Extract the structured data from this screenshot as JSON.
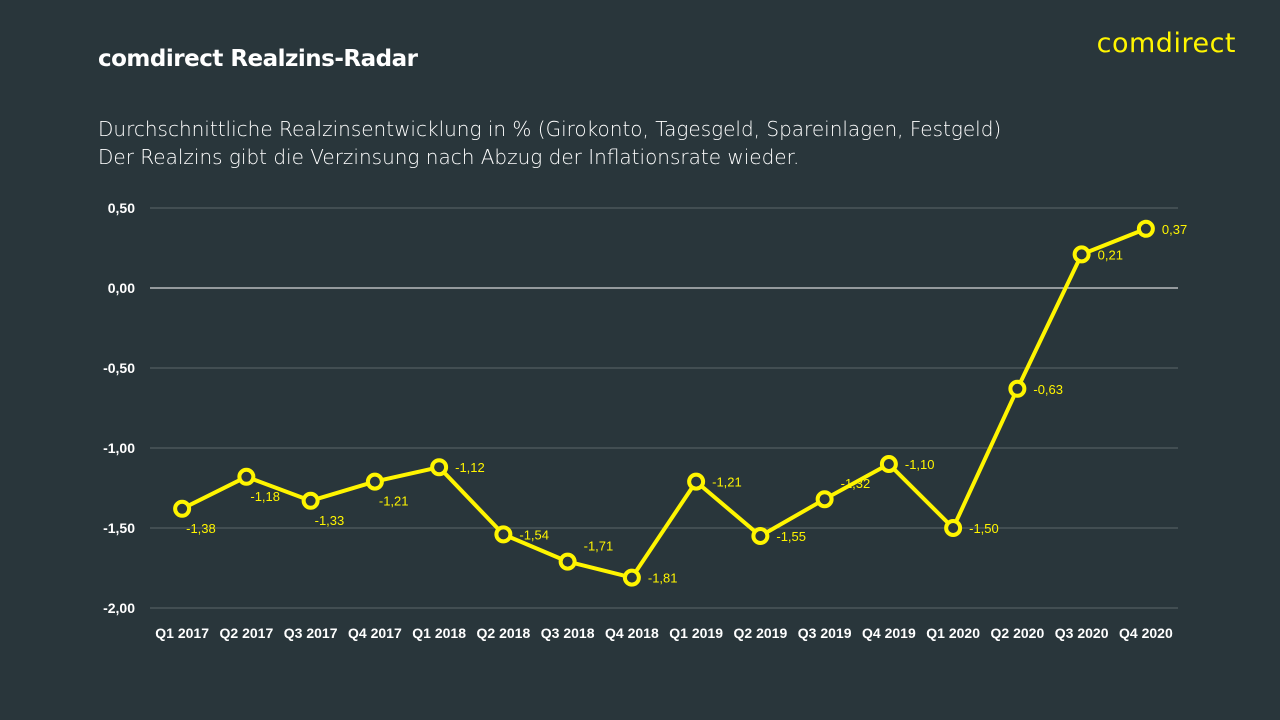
{
  "header": {
    "title": "comdirect Realzins-Radar",
    "logo": "comdirect",
    "subtitle_line1": "Durchschnittliche Realzinsentwicklung in % (Girokonto, Tagesgeld, Spareinlagen, Festgeld)",
    "subtitle_line2": "Der Realzins gibt die Verzinsung nach Abzug der Inflationsrate wieder."
  },
  "colors": {
    "background": "#29363b",
    "series": "#fff500",
    "text": "#ffffff",
    "grid": "#5b666a"
  },
  "chart_data": {
    "type": "line",
    "categories": [
      "Q1 2017",
      "Q2 2017",
      "Q3 2017",
      "Q4 2017",
      "Q1 2018",
      "Q2 2018",
      "Q3 2018",
      "Q4 2018",
      "Q1 2019",
      "Q2 2019",
      "Q3 2019",
      "Q4 2019",
      "Q1 2020",
      "Q2 2020",
      "Q3 2020",
      "Q4 2020"
    ],
    "values": [
      -1.38,
      -1.18,
      -1.33,
      -1.21,
      -1.12,
      -1.54,
      -1.71,
      -1.81,
      -1.21,
      -1.55,
      -1.32,
      -1.1,
      -1.5,
      -0.63,
      0.21,
      0.37
    ],
    "data_labels": [
      "-1,38",
      "-1,18",
      "-1,33",
      "-1,21",
      "-1,12",
      "-1,54",
      "-1,71",
      "-1,81",
      "-1,21",
      "-1,55",
      "-1,32",
      "-1,10",
      "-1,50",
      "-0,63",
      "0,21",
      "0,37"
    ],
    "yticks": [
      0.5,
      0,
      -0.5,
      -1,
      -1.5,
      -2
    ],
    "ytick_labels": [
      "0,50",
      "0,00",
      "-0,50",
      "-1,00",
      "-1,50",
      "-2,00"
    ],
    "ylim": [
      -2,
      0.5
    ],
    "grid": true,
    "legend": "none"
  }
}
